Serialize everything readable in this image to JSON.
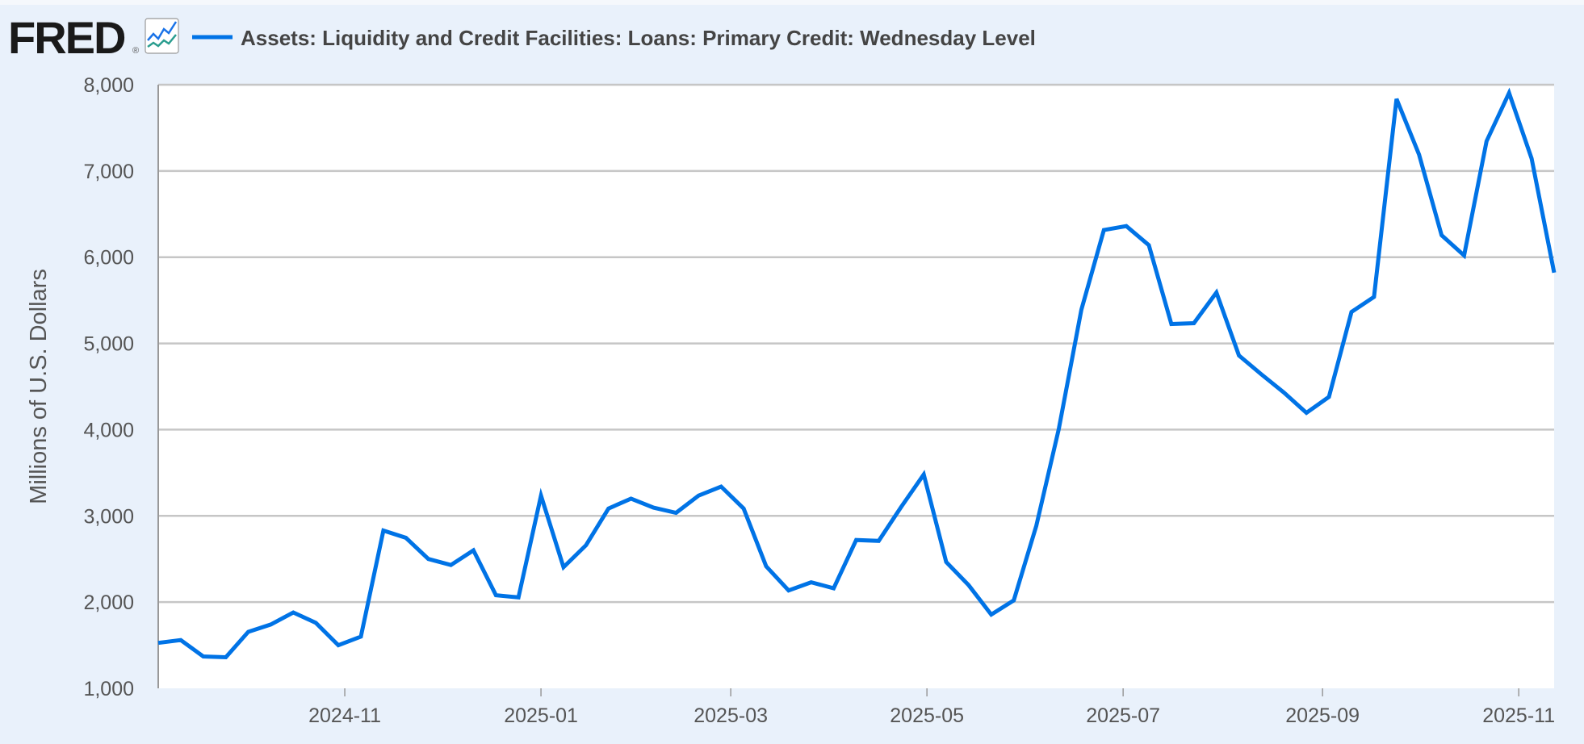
{
  "header": {
    "logo_text": "FRED",
    "logo_mark": "®",
    "logo_icon": "line-chart-icon"
  },
  "colors": {
    "series": "#0073e6",
    "grid": "#c6c6c6",
    "background": "#e9f1fb",
    "plot": "#ffffff"
  },
  "chart_data": {
    "type": "line",
    "title": "Assets: Liquidity and Credit Facilities: Loans: Primary Credit: Wednesday Level",
    "xlabel": "",
    "ylabel": "Millions of U.S. Dollars",
    "ylim": [
      1000,
      8000
    ],
    "xlim": [
      "2024-09-04",
      "2025-11-12"
    ],
    "yticks": [
      1000,
      2000,
      3000,
      4000,
      5000,
      6000,
      7000,
      8000
    ],
    "ytick_labels": [
      "1,000",
      "2,000",
      "3,000",
      "4,000",
      "5,000",
      "6,000",
      "7,000",
      "8,000"
    ],
    "xticks": [
      "2024-11-01",
      "2025-01-01",
      "2025-03-01",
      "2025-05-01",
      "2025-07-01",
      "2025-09-01",
      "2025-11-01"
    ],
    "xtick_labels": [
      "2024-11",
      "2025-01",
      "2025-03",
      "2025-05",
      "2025-07",
      "2025-09",
      "2025-11"
    ],
    "grid": true,
    "legend": "top-left",
    "series": [
      {
        "name": "Assets: Liquidity and Credit Facilities: Loans: Primary Credit: Wednesday Level",
        "x_start": "2024-09-04",
        "x_step_days": 7,
        "values": [
          1527,
          1560,
          1370,
          1360,
          1655,
          1740,
          1880,
          1760,
          1500,
          1600,
          2830,
          2745,
          2500,
          2430,
          2600,
          2080,
          2055,
          3235,
          2405,
          2660,
          3085,
          3200,
          3095,
          3035,
          3235,
          3340,
          3085,
          2415,
          2135,
          2230,
          2160,
          2720,
          2710,
          3105,
          3480,
          2465,
          2195,
          1855,
          2020,
          2885,
          4010,
          5390,
          6315,
          6360,
          6140,
          5225,
          5235,
          5590,
          4860,
          4640,
          4430,
          4195,
          4380,
          5365,
          5540,
          7835,
          7190,
          6255,
          6020,
          7345,
          7905,
          7145,
          5820
        ]
      }
    ]
  }
}
